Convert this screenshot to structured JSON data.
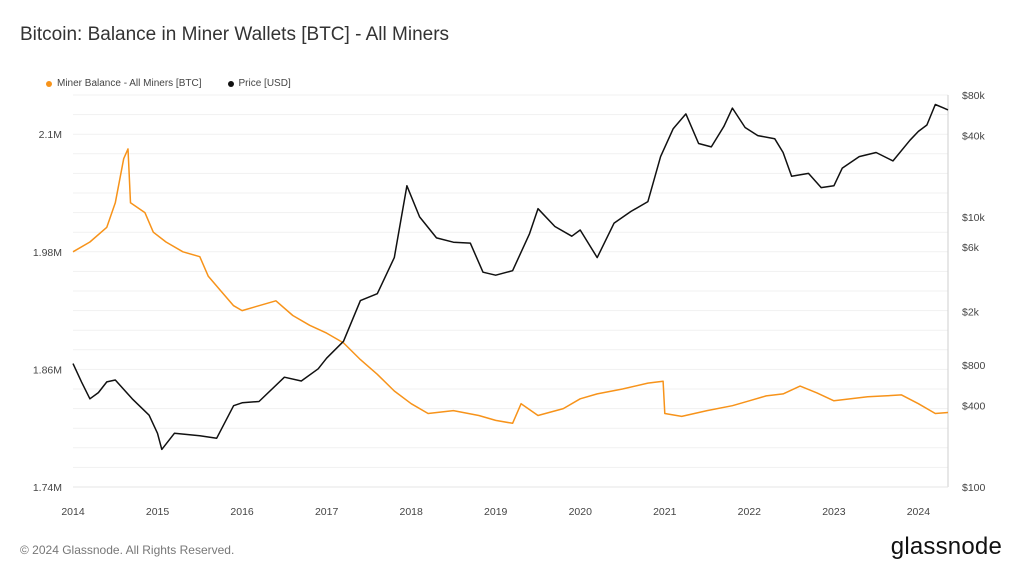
{
  "title": "Bitcoin: Balance in Miner Wallets [BTC] - All Miners",
  "footer": "© 2024 Glassnode. All Rights Reserved.",
  "logo": "glassnode",
  "chart_data": {
    "type": "line",
    "title": "Bitcoin: Balance in Miner Wallets [BTC] - All Miners",
    "x_ticks": [
      "2014",
      "2015",
      "2016",
      "2017",
      "2018",
      "2019",
      "2020",
      "2021",
      "2022",
      "2023",
      "2024"
    ],
    "xlim": [
      2014.0,
      2024.35
    ],
    "y_left": {
      "ticks": [
        "1.74M",
        "1.86M",
        "1.98M",
        "2.1M"
      ],
      "tick_values": [
        1740000,
        1860000,
        1980000,
        2100000
      ],
      "ylim": [
        1740000,
        2140000
      ]
    },
    "y_right": {
      "scale": "log",
      "ticks": [
        "$100",
        "$400",
        "$800",
        "$2k",
        "$6k",
        "$10k",
        "$40k",
        "$80k"
      ],
      "tick_values": [
        100,
        400,
        800,
        2000,
        6000,
        10000,
        40000,
        80000
      ],
      "ylim": [
        100,
        80000
      ]
    },
    "grid": true,
    "legend_position": "top-left",
    "series": [
      {
        "name": "Miner Balance - All Miners [BTC]",
        "axis": "left",
        "color": "#f7931a",
        "points": [
          [
            2014.0,
            1980000
          ],
          [
            2014.2,
            1990000
          ],
          [
            2014.4,
            2005000
          ],
          [
            2014.5,
            2030000
          ],
          [
            2014.6,
            2075000
          ],
          [
            2014.65,
            2085000
          ],
          [
            2014.68,
            2030000
          ],
          [
            2014.85,
            2020000
          ],
          [
            2014.95,
            2000000
          ],
          [
            2015.1,
            1990000
          ],
          [
            2015.3,
            1980000
          ],
          [
            2015.5,
            1975000
          ],
          [
            2015.6,
            1955000
          ],
          [
            2015.75,
            1940000
          ],
          [
            2015.9,
            1925000
          ],
          [
            2016.0,
            1920000
          ],
          [
            2016.2,
            1925000
          ],
          [
            2016.4,
            1930000
          ],
          [
            2016.6,
            1915000
          ],
          [
            2016.8,
            1905000
          ],
          [
            2017.0,
            1897000
          ],
          [
            2017.2,
            1887000
          ],
          [
            2017.4,
            1870000
          ],
          [
            2017.6,
            1855000
          ],
          [
            2017.8,
            1838000
          ],
          [
            2018.0,
            1825000
          ],
          [
            2018.2,
            1815000
          ],
          [
            2018.5,
            1818000
          ],
          [
            2018.8,
            1813000
          ],
          [
            2019.0,
            1808000
          ],
          [
            2019.2,
            1805000
          ],
          [
            2019.3,
            1825000
          ],
          [
            2019.5,
            1813000
          ],
          [
            2019.8,
            1820000
          ],
          [
            2020.0,
            1830000
          ],
          [
            2020.2,
            1835000
          ],
          [
            2020.5,
            1840000
          ],
          [
            2020.8,
            1846000
          ],
          [
            2020.98,
            1848000
          ],
          [
            2021.0,
            1815000
          ],
          [
            2021.2,
            1812000
          ],
          [
            2021.5,
            1818000
          ],
          [
            2021.8,
            1823000
          ],
          [
            2022.0,
            1828000
          ],
          [
            2022.2,
            1833000
          ],
          [
            2022.4,
            1835000
          ],
          [
            2022.6,
            1843000
          ],
          [
            2022.8,
            1836000
          ],
          [
            2023.0,
            1828000
          ],
          [
            2023.2,
            1830000
          ],
          [
            2023.4,
            1832000
          ],
          [
            2023.6,
            1833000
          ],
          [
            2023.8,
            1834000
          ],
          [
            2024.0,
            1825000
          ],
          [
            2024.2,
            1815000
          ],
          [
            2024.35,
            1816000
          ]
        ]
      },
      {
        "name": "Price [USD]",
        "axis": "right",
        "color": "#111111",
        "points": [
          [
            2014.0,
            820
          ],
          [
            2014.1,
            600
          ],
          [
            2014.2,
            450
          ],
          [
            2014.3,
            500
          ],
          [
            2014.4,
            600
          ],
          [
            2014.5,
            620
          ],
          [
            2014.7,
            450
          ],
          [
            2014.9,
            340
          ],
          [
            2015.0,
            250
          ],
          [
            2015.05,
            190
          ],
          [
            2015.2,
            250
          ],
          [
            2015.5,
            240
          ],
          [
            2015.7,
            230
          ],
          [
            2015.9,
            400
          ],
          [
            2016.0,
            420
          ],
          [
            2016.2,
            430
          ],
          [
            2016.5,
            650
          ],
          [
            2016.7,
            610
          ],
          [
            2016.9,
            750
          ],
          [
            2017.0,
            900
          ],
          [
            2017.2,
            1200
          ],
          [
            2017.4,
            2400
          ],
          [
            2017.6,
            2700
          ],
          [
            2017.8,
            5000
          ],
          [
            2017.95,
            17000
          ],
          [
            2018.1,
            10000
          ],
          [
            2018.3,
            7000
          ],
          [
            2018.5,
            6500
          ],
          [
            2018.7,
            6400
          ],
          [
            2018.85,
            3900
          ],
          [
            2019.0,
            3700
          ],
          [
            2019.2,
            4000
          ],
          [
            2019.4,
            7500
          ],
          [
            2019.5,
            11500
          ],
          [
            2019.7,
            8500
          ],
          [
            2019.9,
            7200
          ],
          [
            2020.0,
            8000
          ],
          [
            2020.2,
            5000
          ],
          [
            2020.4,
            9000
          ],
          [
            2020.6,
            11000
          ],
          [
            2020.8,
            13000
          ],
          [
            2020.95,
            28000
          ],
          [
            2021.1,
            45000
          ],
          [
            2021.25,
            58000
          ],
          [
            2021.4,
            35000
          ],
          [
            2021.55,
            33000
          ],
          [
            2021.7,
            47000
          ],
          [
            2021.8,
            64000
          ],
          [
            2021.95,
            46000
          ],
          [
            2022.1,
            40000
          ],
          [
            2022.3,
            38000
          ],
          [
            2022.4,
            30000
          ],
          [
            2022.5,
            20000
          ],
          [
            2022.7,
            21000
          ],
          [
            2022.85,
            16500
          ],
          [
            2023.0,
            17000
          ],
          [
            2023.1,
            23000
          ],
          [
            2023.3,
            28000
          ],
          [
            2023.5,
            30000
          ],
          [
            2023.7,
            26000
          ],
          [
            2023.9,
            37000
          ],
          [
            2024.0,
            43000
          ],
          [
            2024.1,
            48000
          ],
          [
            2024.2,
            68000
          ],
          [
            2024.3,
            64000
          ],
          [
            2024.35,
            62000
          ]
        ]
      }
    ]
  }
}
